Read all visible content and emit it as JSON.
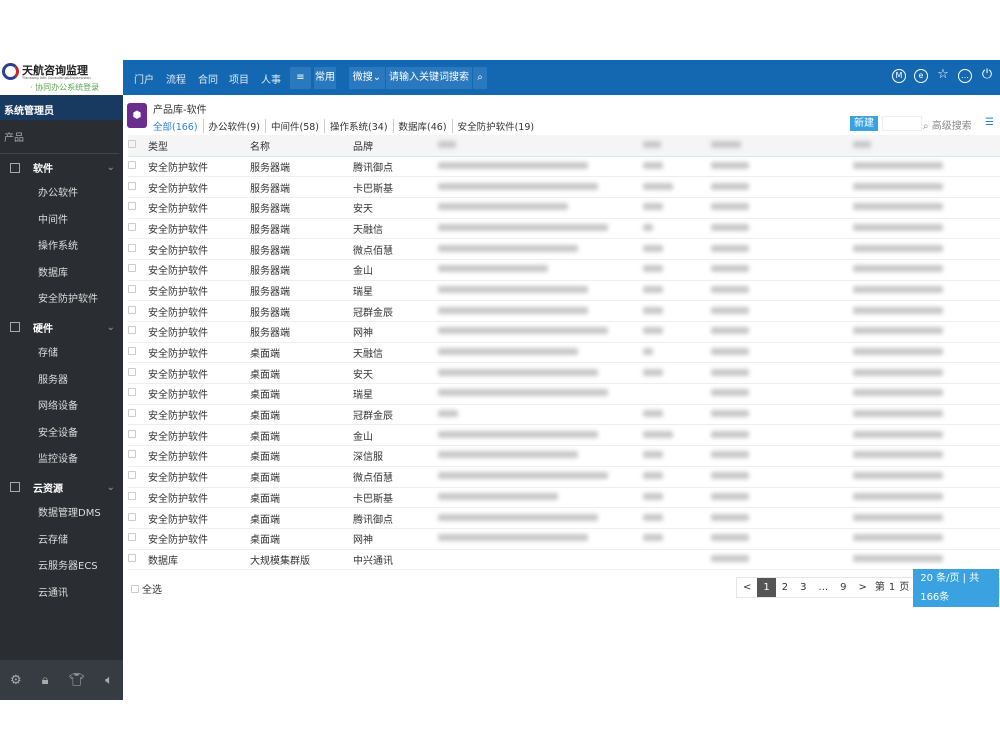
{
  "logo": {
    "name": "天航咨询监理",
    "subtitle": "Tianhang Info Consulting&Supervision",
    "tagline": "· 协同办公系统登录"
  },
  "topbar": {
    "nav": [
      "门户",
      "流程",
      "合同",
      "项目",
      "人事"
    ],
    "menu_icon": "menu-icon",
    "common": "常用",
    "search_scope": "微搜",
    "search_placeholder": "请输入关键词搜索",
    "right_icons": [
      "m-icon",
      "e-icon",
      "star-icon",
      "more-icon",
      "power-icon"
    ],
    "color": "#1468b1"
  },
  "sidebar": {
    "user": "系统管理员",
    "section": "产品",
    "groups": [
      {
        "label": "软件",
        "items": [
          "办公软件",
          "中间件",
          "操作系统",
          "数据库",
          "安全防护软件"
        ]
      },
      {
        "label": "硬件",
        "items": [
          "存储",
          "服务器",
          "网络设备",
          "安全设备",
          "监控设备"
        ]
      },
      {
        "label": "云资源",
        "items": [
          "数据管理DMS",
          "云存储",
          "云服务器ECS",
          "云通讯"
        ]
      }
    ],
    "footer_icons": [
      "gear-icon",
      "lock-icon",
      "shirt-icon",
      "speaker-icon"
    ]
  },
  "main": {
    "title": "产品库-软件",
    "tabs": [
      "全部(166)",
      "办公软件(9)",
      "中间件(58)",
      "操作系统(34)",
      "数据库(46)",
      "安全防护软件(19)"
    ],
    "new_button": "新建",
    "advanced_search": "高级搜索",
    "columns": [
      "类型",
      "名称",
      "品牌"
    ],
    "rows": [
      [
        "安全防护软件",
        "服务器端",
        "腾讯御点"
      ],
      [
        "安全防护软件",
        "服务器端",
        "卡巴斯基"
      ],
      [
        "安全防护软件",
        "服务器端",
        "安天"
      ],
      [
        "安全防护软件",
        "服务器端",
        "天融信"
      ],
      [
        "安全防护软件",
        "服务器端",
        "微点佰慧"
      ],
      [
        "安全防护软件",
        "服务器端",
        "金山"
      ],
      [
        "安全防护软件",
        "服务器端",
        "瑞星"
      ],
      [
        "安全防护软件",
        "服务器端",
        "冠群金辰"
      ],
      [
        "安全防护软件",
        "服务器端",
        "网神"
      ],
      [
        "安全防护软件",
        "桌面端",
        "天融信"
      ],
      [
        "安全防护软件",
        "桌面端",
        "安天"
      ],
      [
        "安全防护软件",
        "桌面端",
        "瑞星"
      ],
      [
        "安全防护软件",
        "桌面端",
        "冠群金辰"
      ],
      [
        "安全防护软件",
        "桌面端",
        "金山"
      ],
      [
        "安全防护软件",
        "桌面端",
        "深信服"
      ],
      [
        "安全防护软件",
        "桌面端",
        "微点佰慧"
      ],
      [
        "安全防护软件",
        "桌面端",
        "卡巴斯基"
      ],
      [
        "安全防护软件",
        "桌面端",
        "腾讯御点"
      ],
      [
        "安全防护软件",
        "桌面端",
        "网神"
      ],
      [
        "数据库",
        "大规模集群版",
        "中兴通讯"
      ]
    ],
    "select_all": "全选",
    "pagination": {
      "prev": "<",
      "pages": [
        "1",
        "2",
        "3",
        "...",
        "9"
      ],
      "current": "1",
      "next": ">",
      "goto_prefix": "第",
      "goto_value": "1",
      "goto_suffix": "页",
      "page_size": "20 条/页 | 共166条"
    }
  }
}
